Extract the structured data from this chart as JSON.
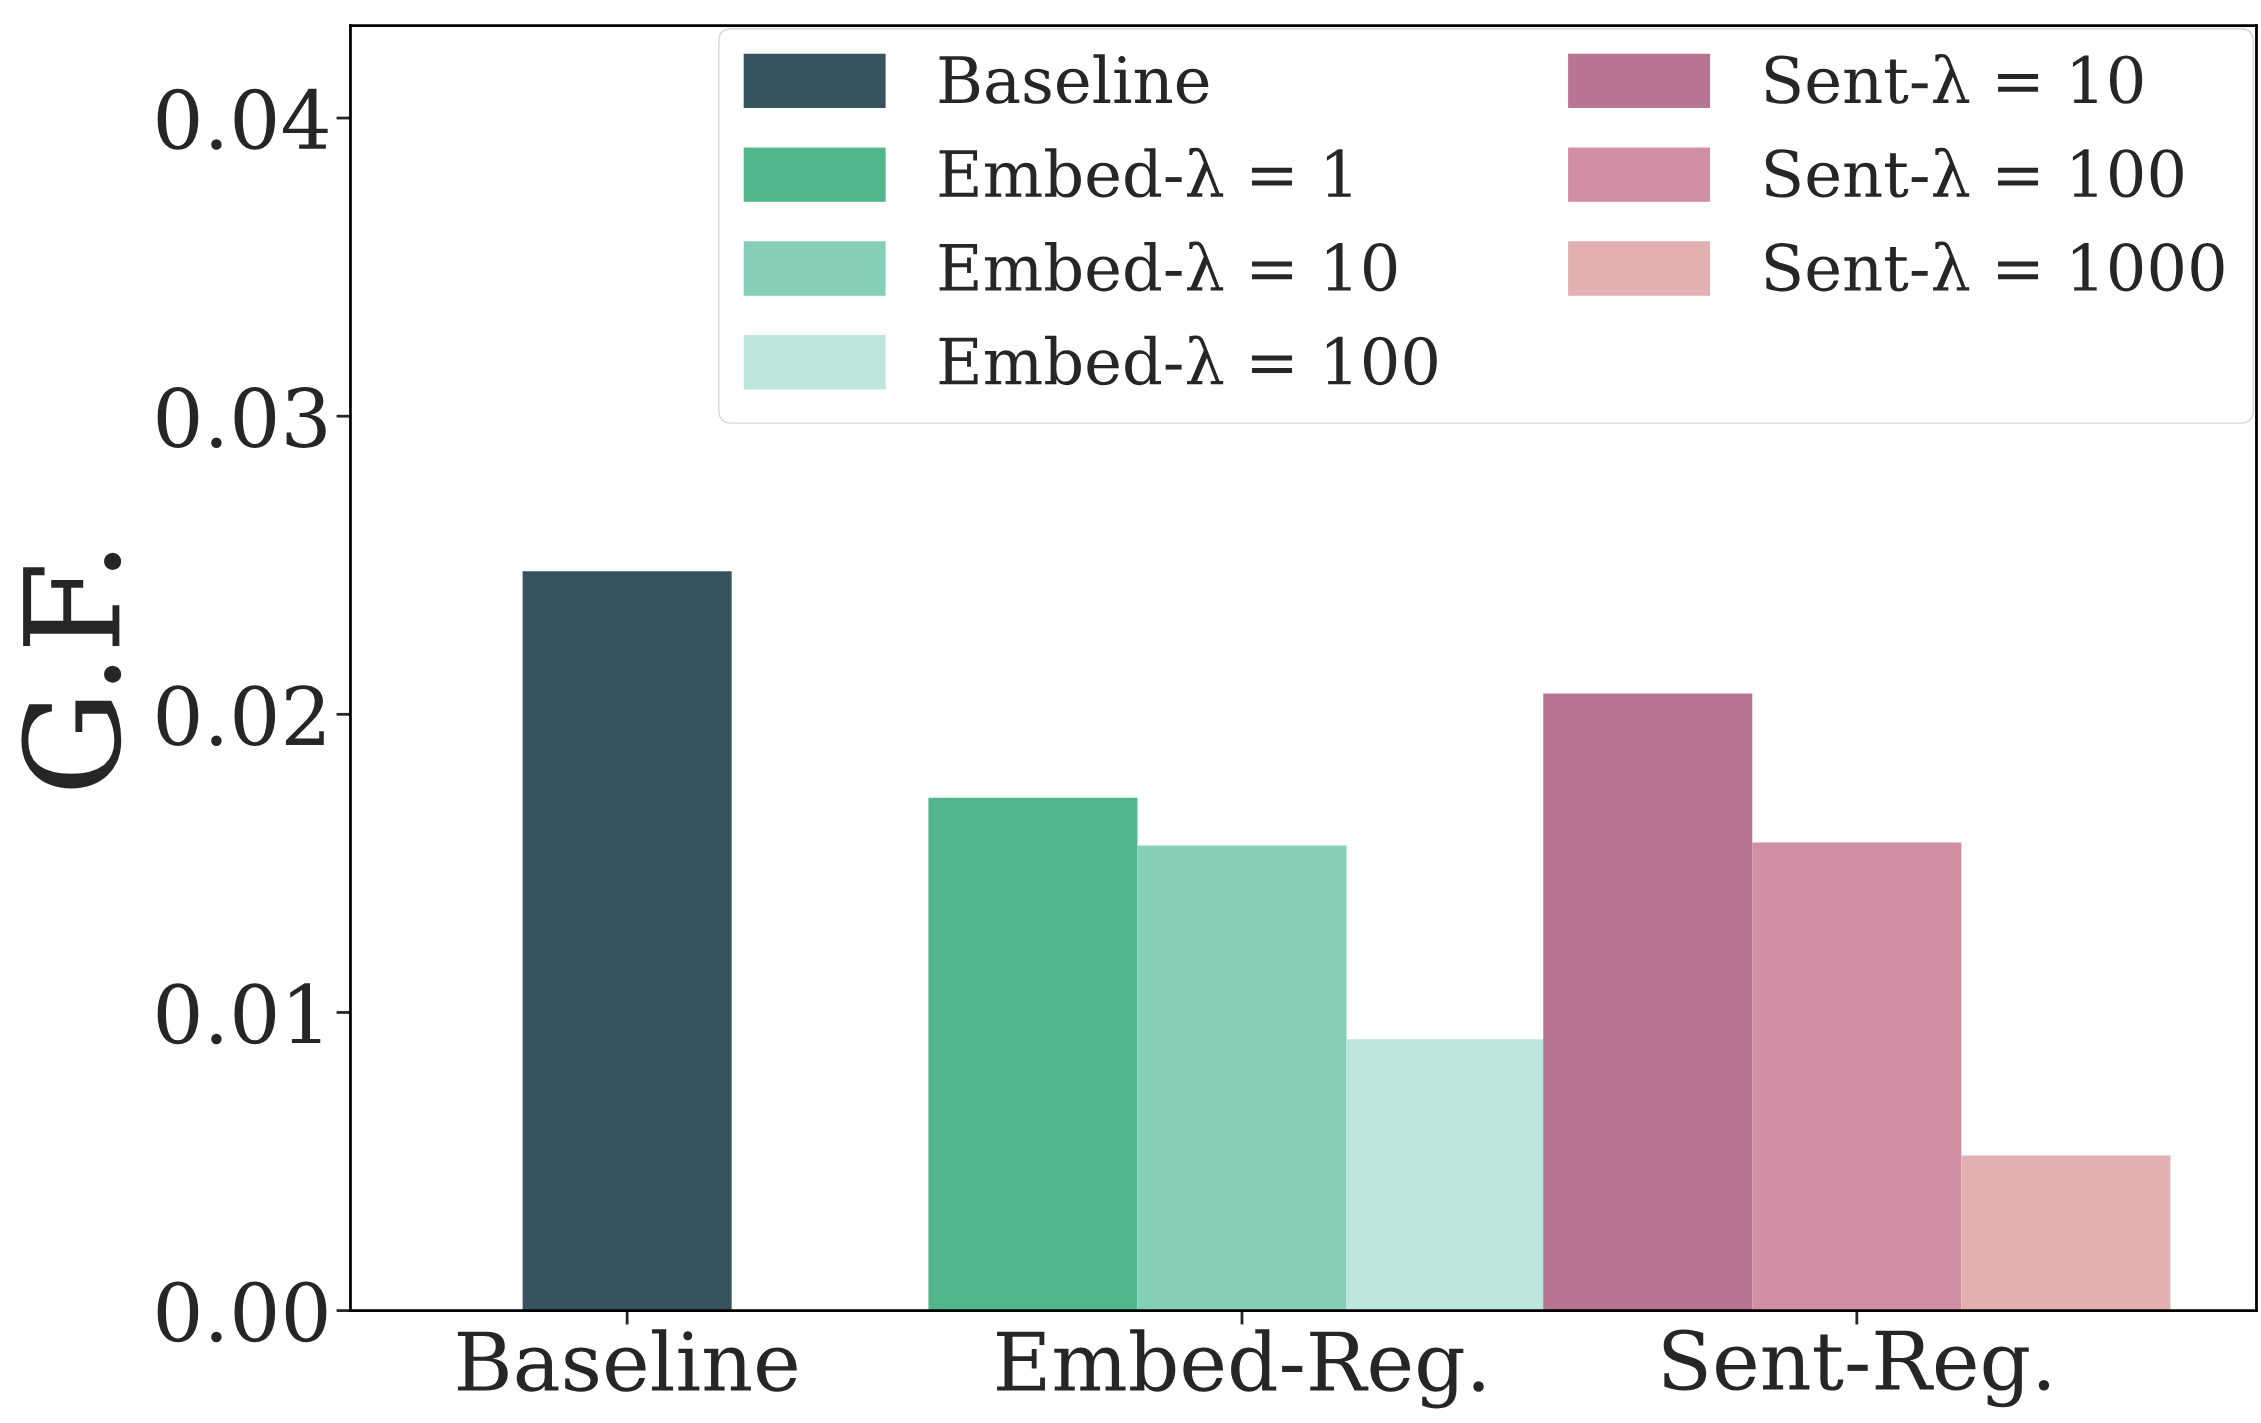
{
  "chart_data": {
    "type": "bar",
    "ylabel": "G.F.",
    "categories": [
      "Baseline",
      "Embed-Reg.",
      "Sent-Reg."
    ],
    "series": [
      {
        "name": "Baseline",
        "color": "#37535e",
        "values": [
          0.0248,
          null,
          null
        ]
      },
      {
        "name": "Embed-λ = 1",
        "color": "#52b68b",
        "values": [
          null,
          0.0172,
          null
        ]
      },
      {
        "name": "Embed-λ = 10",
        "color": "#85cfb8",
        "values": [
          null,
          0.0156,
          null
        ]
      },
      {
        "name": "Embed-λ = 100",
        "color": "#bde6dd",
        "values": [
          null,
          0.0091,
          null
        ]
      },
      {
        "name": "Sent-λ = 10",
        "color": "#b87493",
        "values": [
          null,
          null,
          0.0207
        ]
      },
      {
        "name": "Sent-λ = 100",
        "color": "#d08fa3",
        "values": [
          null,
          null,
          0.0157
        ]
      },
      {
        "name": "Sent-λ = 1000",
        "color": "#e2b0b1",
        "values": [
          null,
          null,
          0.0052
        ]
      }
    ],
    "ylim": [
      0,
      0.0431
    ],
    "yticks": [
      {
        "value": 0,
        "label": "0.00"
      },
      {
        "value": 0.01,
        "label": "0.01"
      },
      {
        "value": 0.02,
        "label": "0.02"
      },
      {
        "value": 0.03,
        "label": "0.03"
      },
      {
        "value": 0.04,
        "label": "0.04"
      }
    ],
    "legend": "top right",
    "grid": false
  }
}
